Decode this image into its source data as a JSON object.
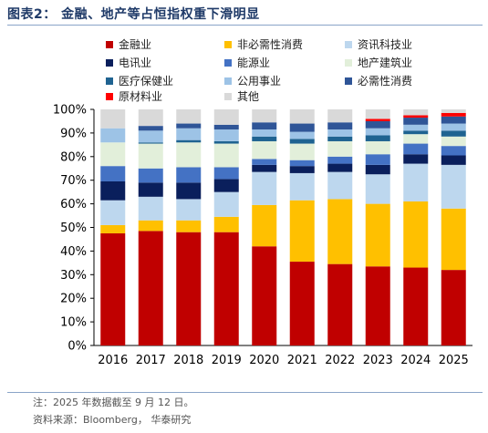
{
  "header": {
    "title": "图表2： 金融、地产等占恒指权重下滑明显"
  },
  "footer": {
    "note": "注：2025 年数据截至 9 月 12 日。",
    "source": "资料来源：Bloomberg， 华泰研究"
  },
  "chart_data": {
    "type": "bar",
    "stacked": true,
    "title": "",
    "xlabel": "",
    "ylabel": "",
    "ylim": [
      0,
      100
    ],
    "y_unit": "%",
    "y_ticks": [
      "0%",
      "10%",
      "20%",
      "30%",
      "40%",
      "50%",
      "60%",
      "70%",
      "80%",
      "90%",
      "100%"
    ],
    "grid": false,
    "legend_position": "top",
    "categories": [
      "2016",
      "2017",
      "2018",
      "2019",
      "2020",
      "2021",
      "2022",
      "2023",
      "2024",
      "2025"
    ],
    "series": [
      {
        "name": "金融业",
        "color": "#c00000",
        "values": [
          47.5,
          48.5,
          48.0,
          48.0,
          42.0,
          35.5,
          34.5,
          33.5,
          33.0,
          32.0
        ]
      },
      {
        "name": "非必需性消费",
        "color": "#ffc000",
        "values": [
          3.5,
          4.5,
          5.0,
          6.5,
          17.5,
          26.0,
          27.5,
          26.5,
          28.0,
          26.0
        ]
      },
      {
        "name": "资讯科技业",
        "color": "#bdd7ee",
        "values": [
          10.5,
          10.0,
          9.0,
          10.5,
          14.0,
          11.5,
          11.5,
          12.5,
          16.0,
          18.5
        ]
      },
      {
        "name": "电讯业",
        "color": "#0a1f5c",
        "values": [
          8.0,
          6.0,
          7.0,
          5.5,
          3.0,
          3.0,
          3.5,
          4.0,
          4.0,
          4.0
        ]
      },
      {
        "name": "能源业",
        "color": "#4472c4",
        "values": [
          6.5,
          6.0,
          6.5,
          5.0,
          2.5,
          2.5,
          3.0,
          4.5,
          4.5,
          4.0
        ]
      },
      {
        "name": "地产建筑业",
        "color": "#e2efda",
        "values": [
          10.0,
          10.5,
          10.5,
          10.0,
          7.5,
          7.0,
          6.5,
          5.5,
          4.0,
          4.0
        ]
      },
      {
        "name": "医疗保健业",
        "color": "#1f6391",
        "values": [
          0.0,
          0.5,
          1.0,
          1.0,
          2.0,
          2.0,
          2.0,
          2.5,
          1.5,
          2.5
        ]
      },
      {
        "name": "公用事业",
        "color": "#9dc3e6",
        "values": [
          6.0,
          5.0,
          5.0,
          5.0,
          3.0,
          3.0,
          3.0,
          3.0,
          2.5,
          3.0
        ]
      },
      {
        "name": "必需性消费",
        "color": "#2f5597",
        "values": [
          0.0,
          2.0,
          2.0,
          2.0,
          3.0,
          3.5,
          3.0,
          3.0,
          3.0,
          3.0
        ]
      },
      {
        "name": "原材料业",
        "color": "#ff0000",
        "values": [
          0.0,
          0.0,
          0.0,
          0.0,
          0.0,
          0.0,
          0.0,
          1.0,
          1.0,
          1.5
        ]
      },
      {
        "name": "其他",
        "color": "#d9d9d9",
        "values": [
          8.0,
          7.0,
          6.0,
          6.5,
          5.5,
          6.0,
          5.5,
          4.0,
          2.5,
          1.5
        ]
      }
    ]
  }
}
